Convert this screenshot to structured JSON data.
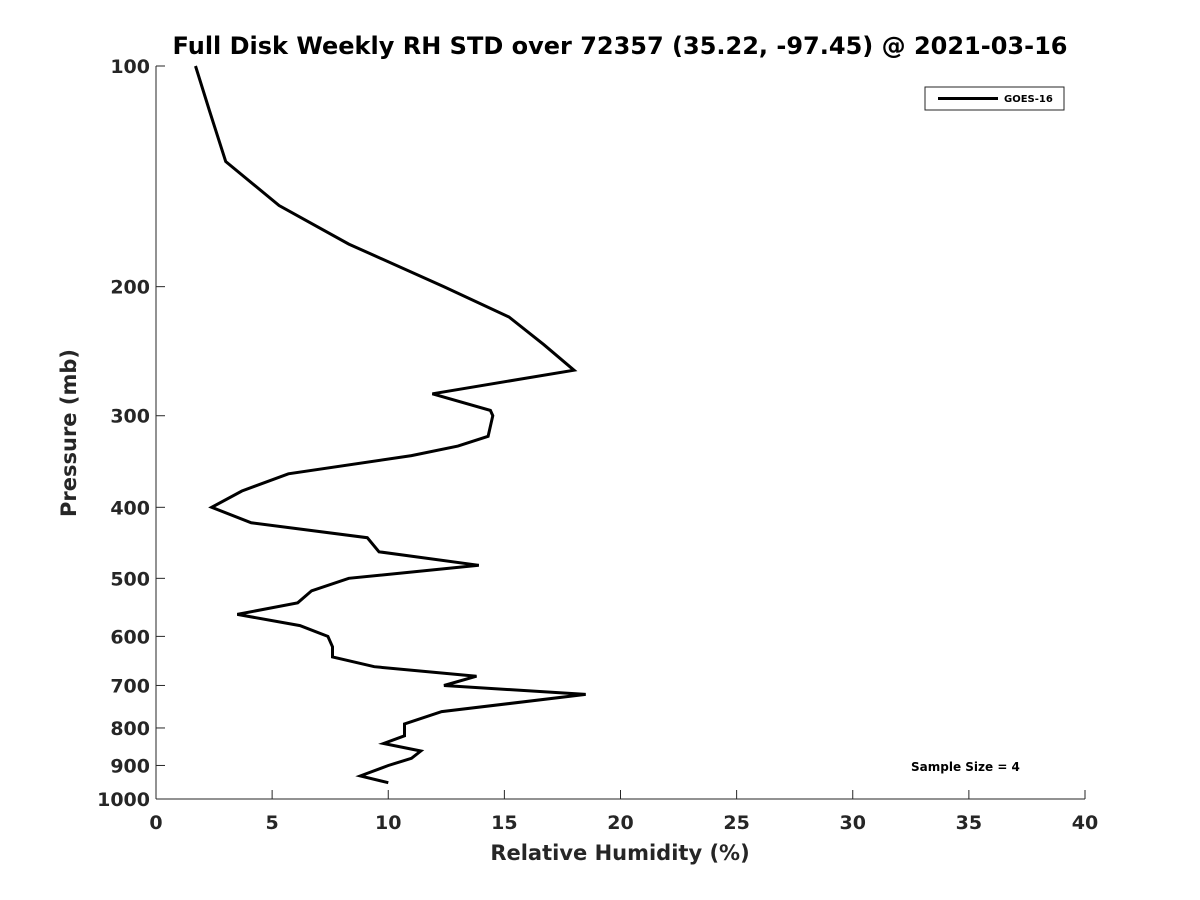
{
  "chart_data": {
    "type": "line",
    "title": "Full Disk Weekly RH STD over 72357 (35.22, -97.45) @ 2021-03-16",
    "xlabel": "Relative Humidity (%)",
    "ylabel": "Pressure (mb)",
    "xlim": [
      0,
      40
    ],
    "ylim": [
      100,
      1000
    ],
    "y_scale": "log",
    "y_reversed": true,
    "x_ticks": [
      0,
      5,
      10,
      15,
      20,
      25,
      30,
      35,
      40
    ],
    "x_tick_labels": [
      "0",
      "5",
      "10",
      "15",
      "20",
      "25",
      "30",
      "35",
      "40"
    ],
    "y_ticks": [
      100,
      200,
      300,
      400,
      500,
      600,
      700,
      800,
      900,
      1000
    ],
    "y_tick_labels": [
      "100",
      "200",
      "300",
      "400",
      "500",
      "600",
      "700",
      "800",
      "900",
      "1000"
    ],
    "grid": false,
    "legend": {
      "placement": "top-right",
      "entries": [
        "GOES-16"
      ]
    },
    "annotation": "Sample Size = 4",
    "series": [
      {
        "name": "GOES-16",
        "color": "#000000",
        "x": [
          1.7,
          2.3,
          3.0,
          5.3,
          8.3,
          12.4,
          15.2,
          16.7,
          18.0,
          11.9,
          14.4,
          14.5,
          14.3,
          13.0,
          11.0,
          5.7,
          3.7,
          2.4,
          4.1,
          9.1,
          9.6,
          13.9,
          8.3,
          6.7,
          6.1,
          3.5,
          6.2,
          7.4,
          7.6,
          7.6,
          9.4,
          13.8,
          12.4,
          18.5,
          12.3,
          10.7,
          10.7,
          9.8,
          11.4,
          11.0,
          10.0,
          8.8,
          10.0
        ],
        "y": [
          100,
          115,
          135,
          155,
          175,
          200,
          220,
          240,
          260,
          280,
          295,
          300,
          320,
          330,
          340,
          360,
          380,
          400,
          420,
          440,
          460,
          480,
          500,
          520,
          540,
          560,
          580,
          600,
          620,
          640,
          660,
          680,
          700,
          720,
          760,
          790,
          820,
          840,
          860,
          880,
          900,
          930,
          950
        ]
      }
    ]
  }
}
